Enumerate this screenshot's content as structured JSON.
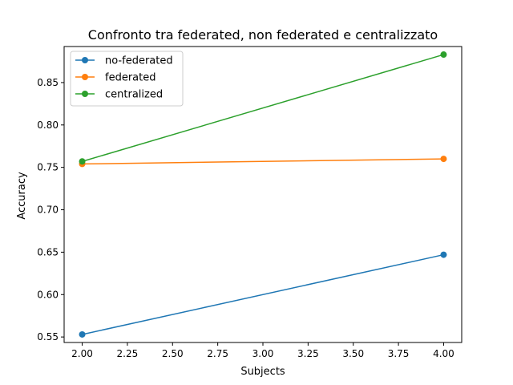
{
  "chart_data": {
    "type": "line",
    "title": "Confronto tra federated, non federated e centralizzato",
    "xlabel": "Subjects",
    "ylabel": "Accuracy",
    "x": [
      2.0,
      4.0
    ],
    "xlim": [
      1.9,
      4.1
    ],
    "ylim": [
      0.5435,
      0.8925
    ],
    "xticks": [
      2.0,
      2.25,
      2.5,
      2.75,
      3.0,
      3.25,
      3.5,
      3.75,
      4.0
    ],
    "xtick_labels": [
      "2.00",
      "2.25",
      "2.50",
      "2.75",
      "3.00",
      "3.25",
      "3.50",
      "3.75",
      "4.00"
    ],
    "yticks": [
      0.55,
      0.6,
      0.65,
      0.7,
      0.75,
      0.8,
      0.85
    ],
    "ytick_labels": [
      "0.55",
      "0.60",
      "0.65",
      "0.70",
      "0.75",
      "0.80",
      "0.85"
    ],
    "grid": false,
    "legend_position": "top-left",
    "markers": "circle",
    "series": [
      {
        "name": "no-federated",
        "values": [
          0.553,
          0.647
        ],
        "color": "#1f77b4"
      },
      {
        "name": "federated",
        "values": [
          0.754,
          0.76
        ],
        "color": "#ff7f0e"
      },
      {
        "name": "centralized",
        "values": [
          0.757,
          0.883
        ],
        "color": "#2ca02c"
      }
    ]
  }
}
